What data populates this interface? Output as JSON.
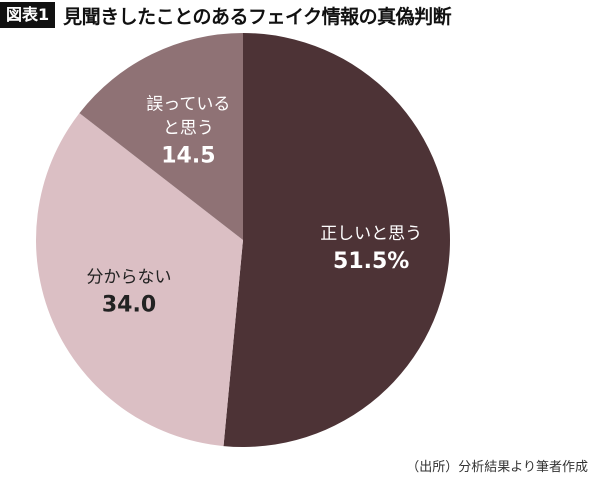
{
  "header": {
    "badge": "図表1",
    "title": "見聞きしたことのあるフェイク情報の真偽判断"
  },
  "chart_data": {
    "type": "pie",
    "title": "見聞きしたことのあるフェイク情報の真偽判断",
    "slices": [
      {
        "label": "正しいと思う",
        "value": 51.5,
        "display": "51.5%",
        "color": "#4d3336",
        "text_color": "#ffffff"
      },
      {
        "label": "分からない",
        "value": 34.0,
        "display": "34.0",
        "color": "#dbbfc4",
        "text_color": "#222222"
      },
      {
        "label": "誤っていると思う",
        "value": 14.5,
        "display": "14.5",
        "color": "#8f7275",
        "text_color": "#ffffff"
      }
    ],
    "start": "12 o'clock",
    "direction": "clockwise"
  },
  "source": "（出所）分析結果より筆者作成"
}
